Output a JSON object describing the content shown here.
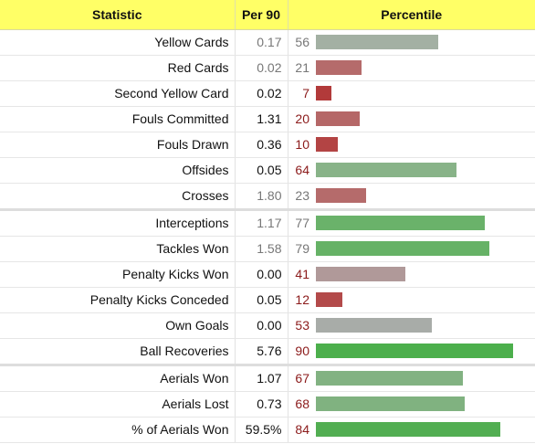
{
  "header": {
    "statistic": "Statistic",
    "per90": "Per 90",
    "percentile": "Percentile"
  },
  "groups": [
    {
      "rows": [
        {
          "stat": "Yellow Cards",
          "per90": "0.17",
          "pct": 56,
          "color": "#a3b0a3",
          "muted": true,
          "num_color": "muted"
        },
        {
          "stat": "Red Cards",
          "per90": "0.02",
          "pct": 21,
          "color": "#b56b6b",
          "muted": true,
          "num_color": "muted"
        },
        {
          "stat": "Second Yellow Card",
          "per90": "0.02",
          "pct": 7,
          "color": "#b23a3a",
          "muted": false,
          "num_color": "red"
        },
        {
          "stat": "Fouls Committed",
          "per90": "1.31",
          "pct": 20,
          "color": "#b56767",
          "muted": false,
          "num_color": "red"
        },
        {
          "stat": "Fouls Drawn",
          "per90": "0.36",
          "pct": 10,
          "color": "#b34444",
          "muted": false,
          "num_color": "red"
        },
        {
          "stat": "Offsides",
          "per90": "0.05",
          "pct": 64,
          "color": "#88b388",
          "muted": false,
          "num_color": "red"
        },
        {
          "stat": "Crosses",
          "per90": "1.80",
          "pct": 23,
          "color": "#b56b6b",
          "muted": true,
          "num_color": "muted"
        }
      ]
    },
    {
      "rows": [
        {
          "stat": "Interceptions",
          "per90": "1.17",
          "pct": 77,
          "color": "#6ab26a",
          "muted": true,
          "num_color": "muted"
        },
        {
          "stat": "Tackles Won",
          "per90": "1.58",
          "pct": 79,
          "color": "#66b266",
          "muted": true,
          "num_color": "muted"
        },
        {
          "stat": "Penalty Kicks Won",
          "per90": "0.00",
          "pct": 41,
          "color": "#b09999",
          "muted": false,
          "num_color": "red"
        },
        {
          "stat": "Penalty Kicks Conceded",
          "per90": "0.05",
          "pct": 12,
          "color": "#b34a4a",
          "muted": false,
          "num_color": "red"
        },
        {
          "stat": "Own Goals",
          "per90": "0.00",
          "pct": 53,
          "color": "#a8aca8",
          "muted": false,
          "num_color": "red"
        },
        {
          "stat": "Ball Recoveries",
          "per90": "5.76",
          "pct": 90,
          "color": "#4caf4c",
          "muted": false,
          "num_color": "red"
        }
      ]
    },
    {
      "rows": [
        {
          "stat": "Aerials Won",
          "per90": "1.07",
          "pct": 67,
          "color": "#82b282",
          "muted": false,
          "num_color": "red"
        },
        {
          "stat": "Aerials Lost",
          "per90": "0.73",
          "pct": 68,
          "color": "#80b280",
          "muted": false,
          "num_color": "red"
        },
        {
          "stat": "% of Aerials Won",
          "per90": "59.5%",
          "pct": 84,
          "color": "#52ae52",
          "muted": false,
          "num_color": "red"
        }
      ]
    }
  ]
}
